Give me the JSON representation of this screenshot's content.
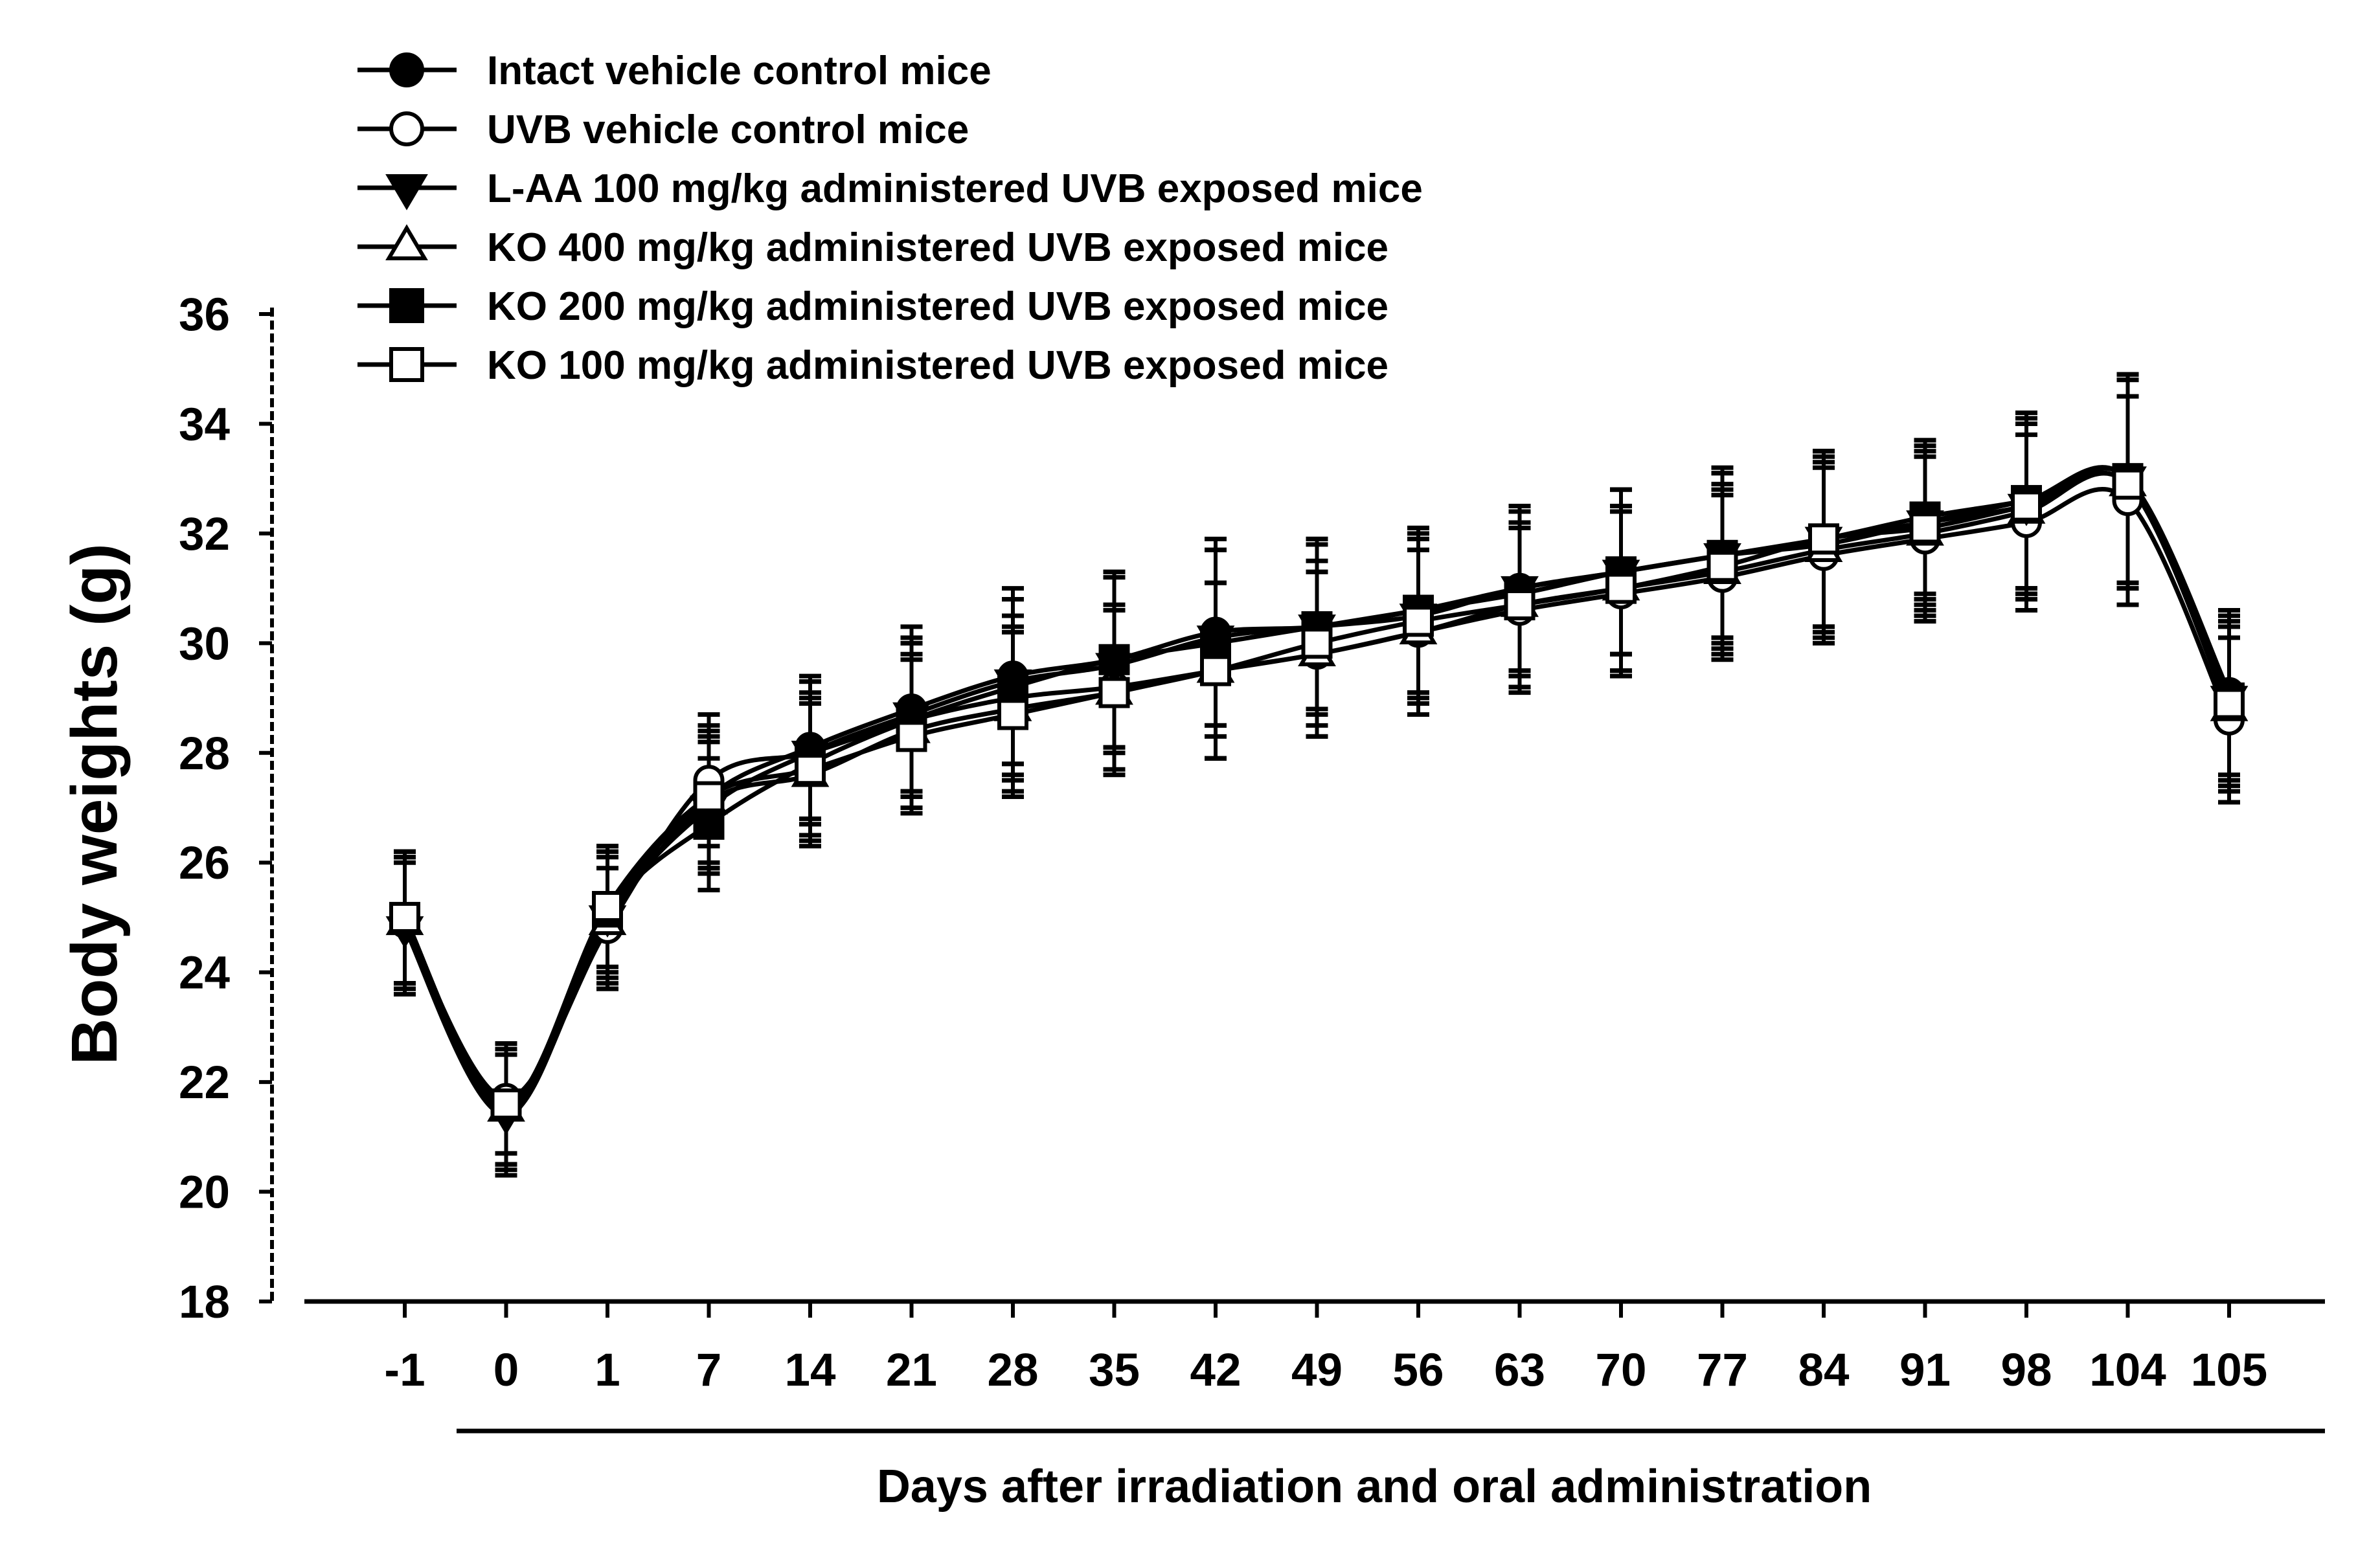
{
  "chart_data": {
    "type": "line",
    "title": "",
    "xlabel": "Days after irradiation and oral administration",
    "ylabel": "Body weights (g)",
    "categories": [
      "-1",
      "0",
      "1",
      "7",
      "14",
      "21",
      "28",
      "35",
      "42",
      "49",
      "56",
      "63",
      "70",
      "77",
      "84",
      "91",
      "98",
      "104",
      "105"
    ],
    "ylim": [
      18,
      36
    ],
    "yticks": [
      18,
      20,
      22,
      24,
      26,
      28,
      30,
      32,
      34,
      36
    ],
    "grid": false,
    "legend_position": "top-left",
    "series": [
      {
        "name": "Intact vehicle control mice",
        "marker": "filled-circle",
        "values": [
          25.0,
          21.6,
          25.1,
          27.2,
          28.1,
          28.8,
          29.4,
          29.7,
          30.2,
          30.3,
          30.6,
          31.0,
          31.3,
          31.6,
          31.8,
          32.2,
          32.6,
          33.0,
          29.1
        ],
        "errors": [
          1.2,
          1.1,
          1.2,
          1.3,
          1.3,
          1.5,
          1.6,
          1.6,
          1.7,
          1.6,
          1.5,
          1.5,
          1.5,
          1.6,
          1.6,
          1.4,
          1.6,
          1.9,
          1.5
        ]
      },
      {
        "name": "UVB vehicle control mice",
        "marker": "open-circle",
        "values": [
          24.9,
          21.7,
          24.8,
          27.5,
          28.0,
          28.6,
          29.0,
          29.2,
          29.5,
          29.8,
          30.2,
          30.6,
          30.9,
          31.2,
          31.6,
          31.9,
          32.2,
          32.6,
          28.6
        ],
        "errors": [
          1.2,
          1.0,
          1.1,
          1.2,
          1.3,
          1.4,
          1.5,
          1.5,
          1.6,
          1.5,
          1.5,
          1.5,
          1.5,
          1.5,
          1.6,
          1.5,
          1.6,
          1.9,
          1.5
        ]
      },
      {
        "name": "L-AA 100 mg/kg administered UVB exposed mice",
        "marker": "filled-triangle-down",
        "values": [
          24.8,
          21.4,
          25.0,
          27.0,
          28.0,
          28.7,
          29.3,
          29.6,
          30.1,
          30.3,
          30.5,
          31.0,
          31.3,
          31.6,
          31.9,
          32.2,
          32.5,
          33.0,
          29.0
        ],
        "errors": [
          1.2,
          1.1,
          1.2,
          1.2,
          1.3,
          1.4,
          1.5,
          1.6,
          1.6,
          1.5,
          1.5,
          1.5,
          1.5,
          1.5,
          1.6,
          1.5,
          1.6,
          1.9,
          1.5
        ]
      },
      {
        "name": "KO 400 mg/kg administered UVB exposed mice",
        "marker": "open-triangle-up",
        "values": [
          24.9,
          21.5,
          24.9,
          27.1,
          27.6,
          28.4,
          28.8,
          29.1,
          29.5,
          29.8,
          30.2,
          30.7,
          31.0,
          31.3,
          31.7,
          32.0,
          32.4,
          32.9,
          28.8
        ],
        "errors": [
          1.2,
          1.1,
          1.2,
          1.2,
          1.3,
          1.4,
          1.5,
          1.5,
          1.6,
          1.5,
          1.5,
          1.5,
          1.5,
          1.5,
          1.6,
          1.5,
          1.6,
          1.9,
          1.5
        ]
      },
      {
        "name": "KO 200 mg/kg administered UVB exposed mice",
        "marker": "filled-square",
        "values": [
          25.0,
          21.6,
          25.1,
          26.7,
          27.8,
          28.6,
          29.2,
          29.7,
          30.0,
          30.3,
          30.6,
          30.9,
          31.3,
          31.6,
          31.9,
          32.3,
          32.6,
          33.0,
          29.0
        ],
        "errors": [
          1.2,
          1.1,
          1.1,
          1.2,
          1.3,
          1.4,
          1.6,
          1.6,
          1.7,
          1.6,
          1.5,
          1.5,
          1.5,
          1.5,
          1.6,
          1.4,
          1.6,
          1.9,
          1.5
        ]
      },
      {
        "name": "KO 100 mg/kg administered UVB exposed mice",
        "marker": "open-square",
        "values": [
          25.0,
          21.6,
          25.2,
          27.2,
          27.7,
          28.3,
          28.7,
          29.1,
          29.5,
          30.0,
          30.4,
          30.7,
          31.0,
          31.4,
          31.9,
          32.1,
          32.5,
          32.9,
          28.9
        ],
        "errors": [
          1.2,
          1.1,
          1.1,
          1.2,
          1.3,
          1.4,
          1.5,
          1.5,
          1.6,
          1.5,
          1.5,
          1.5,
          1.5,
          1.5,
          1.6,
          1.5,
          1.6,
          1.9,
          1.5
        ]
      }
    ]
  }
}
